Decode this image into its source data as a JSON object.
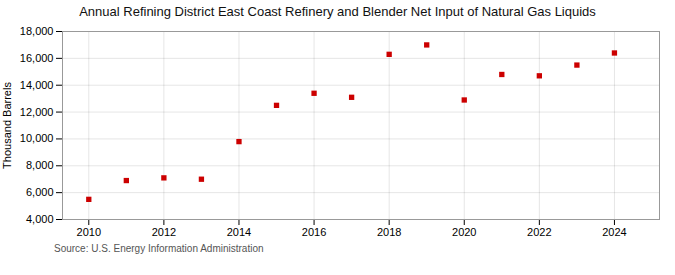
{
  "chart_data": {
    "type": "scatter",
    "title": "Annual Refining District East Coast Refinery and Blender Net Input of Natural Gas Liquids",
    "ylabel": "Thousand Barrels",
    "source": "Source: U.S. Energy Information Administration",
    "x": [
      2010,
      2011,
      2012,
      2013,
      2014,
      2015,
      2016,
      2017,
      2018,
      2019,
      2020,
      2021,
      2022,
      2023,
      2024
    ],
    "values": [
      5500,
      6900,
      7100,
      7000,
      9800,
      12500,
      13400,
      13100,
      16300,
      17000,
      12900,
      14800,
      14700,
      15500,
      16400
    ],
    "color": "#cc0000",
    "marker": "square",
    "xlim": [
      2009.3,
      2025.2
    ],
    "xticks": [
      2010,
      2012,
      2014,
      2016,
      2018,
      2020,
      2022,
      2024
    ],
    "ylim": [
      4000,
      18000
    ],
    "yticks": [
      {
        "value": 4000,
        "label": "4,000"
      },
      {
        "value": 6000,
        "label": "6,000"
      },
      {
        "value": 8000,
        "label": "8,000"
      },
      {
        "value": 10000,
        "label": "10,000"
      },
      {
        "value": 12000,
        "label": "12,000"
      },
      {
        "value": 14000,
        "label": "14,000"
      },
      {
        "value": 16000,
        "label": "16,000"
      },
      {
        "value": 18000,
        "label": "18,000"
      }
    ],
    "grid": true
  }
}
